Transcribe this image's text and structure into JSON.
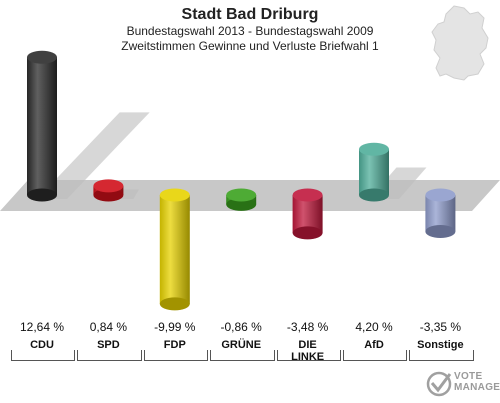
{
  "header": {
    "title": "Stadt Bad Driburg",
    "subtitle1": "Bundestagswahl 2013 - Bundestagswahl 2009",
    "subtitle2": "Zweitstimmen Gewinne und Verluste Briefwahl 1"
  },
  "logo": {
    "line1": "VOTE",
    "line2": "MANAGER"
  },
  "chart_data": {
    "type": "bar",
    "title": "Stadt Bad Driburg",
    "subtitle": "Bundestagswahl 2013 - Bundestagswahl 2009 / Zweitstimmen Gewinne und Verluste Briefwahl 1",
    "categories": [
      "CDU",
      "SPD",
      "FDP",
      "GRÜNE",
      "DIE LINKE",
      "AfD",
      "Sonstige"
    ],
    "values": [
      12.64,
      0.84,
      -9.99,
      -0.86,
      -3.48,
      4.2,
      -3.35
    ],
    "value_labels": [
      "12,64 %",
      "0,84 %",
      "-9,99 %",
      "-0,86 %",
      "-3,48 %",
      "4,20 %",
      "-3,35 %"
    ],
    "category_labels": [
      [
        "CDU"
      ],
      [
        "SPD"
      ],
      [
        "FDP"
      ],
      [
        "GRÜNE"
      ],
      [
        "DIE",
        "LINKE"
      ],
      [
        "AfD"
      ],
      [
        "Sonstige"
      ]
    ],
    "colors": [
      "#2b2b2b",
      "#d0101a",
      "#e7d200",
      "#3aa21e",
      "#c0183c",
      "#4fae9a",
      "#8f9ccc"
    ],
    "xlabel": "",
    "ylabel": "",
    "ylim": [
      -10,
      13
    ]
  }
}
